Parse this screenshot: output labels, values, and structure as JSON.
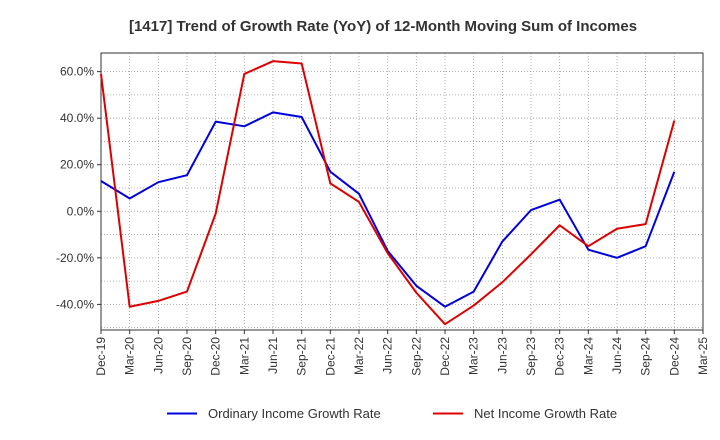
{
  "chart_data": {
    "type": "line",
    "title": "[1417]  Trend of Growth Rate (YoY) of 12-Month Moving Sum of Incomes",
    "xlabel": "",
    "ylabel": "",
    "ylim": [
      -51,
      68
    ],
    "y_ticks": [
      60,
      40,
      20,
      0,
      -20,
      -40
    ],
    "y_tick_labels": [
      "60.0%",
      "40.0%",
      "20.0%",
      "0.0%",
      "-20.0%",
      "-40.0%"
    ],
    "x_tick_labels": [
      "Dec-19",
      "Mar-20",
      "Jun-20",
      "Sep-20",
      "Dec-20",
      "Mar-21",
      "Jun-21",
      "Sep-21",
      "Dec-21",
      "Mar-22",
      "Jun-22",
      "Sep-22",
      "Dec-22",
      "Mar-23",
      "Jun-23",
      "Sep-23",
      "Dec-23",
      "Mar-24",
      "Jun-24",
      "Sep-24",
      "Dec-24",
      "Mar-25"
    ],
    "grid": true,
    "legend_position": "bottom",
    "colors": {
      "ordinary": "#0000dd",
      "net": "#dd0000",
      "grid": "#999999",
      "axis": "#333333"
    },
    "x": [
      "Dec-19",
      "Mar-20",
      "Jun-20",
      "Sep-20",
      "Dec-20",
      "Mar-21",
      "Jun-21",
      "Sep-21",
      "Dec-21",
      "Mar-22",
      "Jun-22",
      "Sep-22",
      "Dec-22",
      "Mar-23",
      "Jun-23",
      "Sep-23",
      "Dec-23",
      "Mar-24",
      "Jun-24",
      "Sep-24",
      "Dec-24"
    ],
    "series": [
      {
        "name": "Ordinary Income Growth Rate",
        "color": "#0000dd",
        "values": [
          13.0,
          5.5,
          12.5,
          15.5,
          38.5,
          36.5,
          42.5,
          40.5,
          17.0,
          7.5,
          -17.0,
          -32.0,
          -41.0,
          -34.5,
          -13.0,
          0.5,
          5.0,
          -16.5,
          -20.0,
          -15.0,
          17.0
        ]
      },
      {
        "name": "Net Income Growth Rate",
        "color": "#dd0000",
        "values": [
          59.0,
          -41.0,
          -38.5,
          -34.5,
          -1.0,
          59.0,
          64.5,
          63.5,
          12.0,
          4.0,
          -18.0,
          -35.0,
          -48.5,
          -40.5,
          -30.5,
          -18.5,
          -6.0,
          -15.0,
          -7.5,
          -5.5,
          39.0
        ]
      }
    ]
  }
}
